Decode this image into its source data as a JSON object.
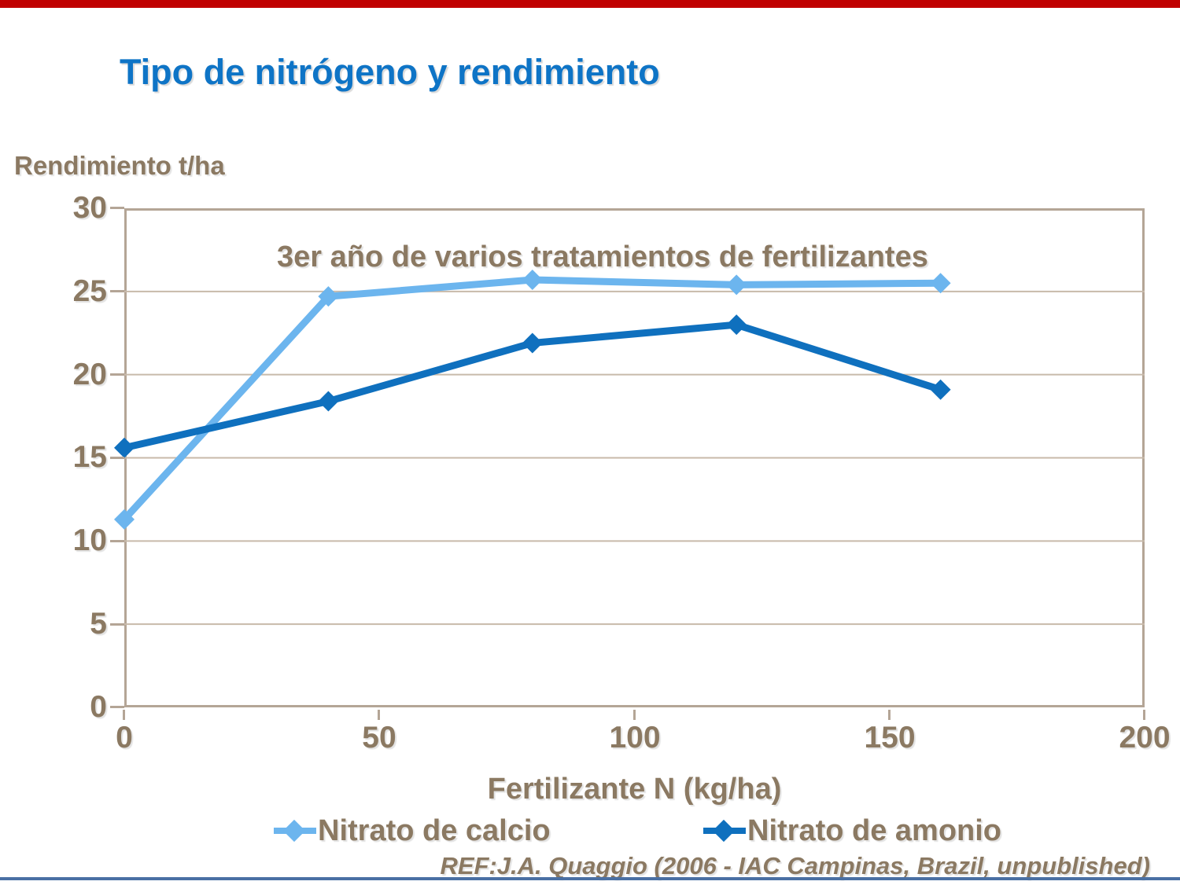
{
  "page": {
    "title": "Tipo de nitrógeno y rendimiento",
    "footer_ref": "REF:J.A. Quaggio (2006 - IAC Campinas, Brazil, unpublished)"
  },
  "colors": {
    "title_blue": "#0E74C6",
    "text_brown": "#8B7962",
    "plot_border_tan": "#B4A596",
    "gridline_tan": "#C8BAAA",
    "calcio_light_blue": "#6CB5EE",
    "amonio_dark_blue": "#0F70BE",
    "top_bar_red": "#C00000",
    "bottom_rule_blue": "#4A70A4"
  },
  "chart_data": {
    "type": "line",
    "subtitle": "3er año de varios tratamientos de fertilizantes",
    "xlabel": "Fertilizante N (kg/ha)",
    "ylabel": "Rendimiento t/ha",
    "x": [
      0,
      40,
      80,
      120,
      160
    ],
    "series": [
      {
        "name": "Nitrato de calcio",
        "color": "#6CB5EE",
        "values": [
          11.3,
          24.7,
          25.7,
          25.4,
          25.5
        ]
      },
      {
        "name": "Nitrato de amonio",
        "color": "#0F70BE",
        "values": [
          15.6,
          18.4,
          21.9,
          23.0,
          19.1
        ]
      }
    ],
    "xlim": [
      0,
      200
    ],
    "ylim": [
      0,
      30
    ],
    "xticks": [
      "0",
      "50",
      "100",
      "150",
      "200"
    ],
    "yticks": [
      "30",
      "25",
      "20",
      "15",
      "10",
      "5",
      "0"
    ],
    "gridlines": [
      5,
      10,
      15,
      20,
      25
    ],
    "grid": "horizontal-only",
    "marker": "diamond",
    "legend_position": "bottom"
  }
}
